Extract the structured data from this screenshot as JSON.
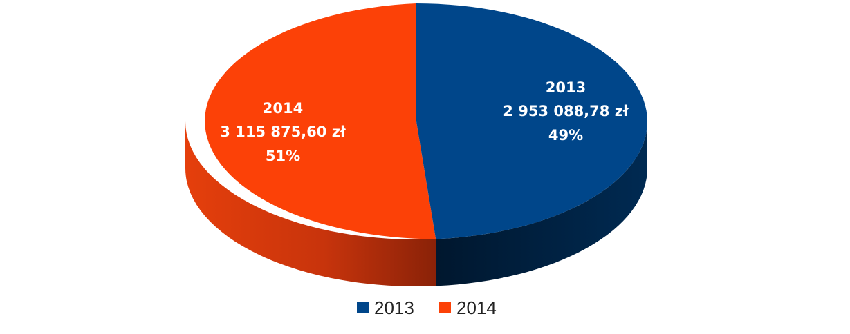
{
  "chart_data": {
    "type": "pie",
    "style": "3d",
    "slices": [
      {
        "name": "2013",
        "value": 2953088.78,
        "value_label": "2 953 088,78 zł",
        "percent_label": "49%",
        "color": "#00468a"
      },
      {
        "name": "2014",
        "value": 3115875.6,
        "value_label": "3 115 875,60 zł",
        "percent_label": "51%",
        "color": "#fc4107"
      }
    ],
    "legend": {
      "placement": "bottom",
      "entries": [
        "2013",
        "2014"
      ]
    }
  }
}
